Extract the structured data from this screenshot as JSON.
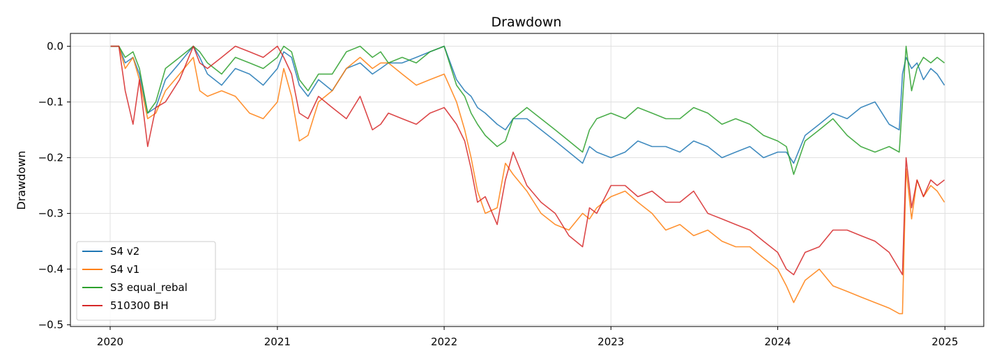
{
  "chart_data": {
    "type": "line",
    "title": "Drawdown",
    "xlabel": "",
    "ylabel": "Drawdown",
    "xlim": [
      "2019-10-06",
      "2025-03-27"
    ],
    "ylim": [
      -0.503,
      0.023
    ],
    "x_ticks": [
      "2020",
      "2021",
      "2022",
      "2023",
      "2024",
      "2025"
    ],
    "y_ticks": [
      0.0,
      -0.1,
      -0.2,
      -0.3,
      -0.4,
      -0.5
    ],
    "y_tick_labels": [
      "0.0",
      "−0.1",
      "−0.2",
      "−0.3",
      "−0.4",
      "−0.5"
    ],
    "grid": true,
    "legend_position": "lower-left",
    "series": [
      {
        "name": "S4 v2",
        "color": "#1f77b4",
        "x": [
          "2020-01-02",
          "2020-01-20",
          "2020-02-03",
          "2020-02-20",
          "2020-03-05",
          "2020-03-23",
          "2020-04-10",
          "2020-05-01",
          "2020-06-01",
          "2020-07-01",
          "2020-07-15",
          "2020-08-01",
          "2020-09-01",
          "2020-10-01",
          "2020-11-01",
          "2020-12-01",
          "2021-01-01",
          "2021-01-15",
          "2021-02-01",
          "2021-02-18",
          "2021-03-09",
          "2021-04-01",
          "2021-05-01",
          "2021-06-01",
          "2021-07-01",
          "2021-07-28",
          "2021-08-15",
          "2021-09-01",
          "2021-10-01",
          "2021-11-01",
          "2021-12-01",
          "2022-01-01",
          "2022-01-28",
          "2022-02-15",
          "2022-03-01",
          "2022-03-15",
          "2022-04-01",
          "2022-04-27",
          "2022-05-15",
          "2022-06-01",
          "2022-07-01",
          "2022-08-01",
          "2022-09-01",
          "2022-10-01",
          "2022-10-31",
          "2022-11-15",
          "2022-12-01",
          "2023-01-01",
          "2023-02-01",
          "2023-03-01",
          "2023-04-01",
          "2023-05-01",
          "2023-06-01",
          "2023-07-01",
          "2023-08-01",
          "2023-09-01",
          "2023-10-01",
          "2023-11-01",
          "2023-12-01",
          "2024-01-01",
          "2024-01-20",
          "2024-02-05",
          "2024-03-01",
          "2024-04-01",
          "2024-05-01",
          "2024-06-01",
          "2024-07-01",
          "2024-08-01",
          "2024-09-01",
          "2024-09-23",
          "2024-09-30",
          "2024-10-08",
          "2024-10-20",
          "2024-11-01",
          "2024-11-15",
          "2024-12-01",
          "2024-12-15",
          "2024-12-31"
        ],
        "y": [
          0.0,
          0.0,
          -0.03,
          -0.02,
          -0.05,
          -0.12,
          -0.11,
          -0.06,
          -0.03,
          0.0,
          -0.02,
          -0.05,
          -0.07,
          -0.04,
          -0.05,
          -0.07,
          -0.04,
          -0.01,
          -0.02,
          -0.07,
          -0.09,
          -0.06,
          -0.08,
          -0.04,
          -0.03,
          -0.05,
          -0.04,
          -0.03,
          -0.03,
          -0.02,
          -0.01,
          0.0,
          -0.06,
          -0.08,
          -0.09,
          -0.11,
          -0.12,
          -0.14,
          -0.15,
          -0.13,
          -0.13,
          -0.15,
          -0.17,
          -0.19,
          -0.21,
          -0.18,
          -0.19,
          -0.2,
          -0.19,
          -0.17,
          -0.18,
          -0.18,
          -0.19,
          -0.17,
          -0.18,
          -0.2,
          -0.19,
          -0.18,
          -0.2,
          -0.19,
          -0.19,
          -0.21,
          -0.16,
          -0.14,
          -0.12,
          -0.13,
          -0.11,
          -0.1,
          -0.14,
          -0.15,
          -0.05,
          -0.02,
          -0.04,
          -0.03,
          -0.06,
          -0.04,
          -0.05,
          -0.07
        ]
      },
      {
        "name": "S4 v1",
        "color": "#ff7f0e",
        "x": [
          "2020-01-02",
          "2020-01-20",
          "2020-02-03",
          "2020-02-20",
          "2020-03-05",
          "2020-03-23",
          "2020-04-10",
          "2020-05-01",
          "2020-06-01",
          "2020-07-01",
          "2020-07-15",
          "2020-08-01",
          "2020-09-01",
          "2020-10-01",
          "2020-11-01",
          "2020-12-01",
          "2021-01-01",
          "2021-01-15",
          "2021-02-01",
          "2021-02-18",
          "2021-03-09",
          "2021-04-01",
          "2021-05-01",
          "2021-06-01",
          "2021-07-01",
          "2021-07-28",
          "2021-08-15",
          "2021-09-01",
          "2021-10-01",
          "2021-11-01",
          "2021-12-01",
          "2022-01-01",
          "2022-01-28",
          "2022-02-15",
          "2022-03-01",
          "2022-03-15",
          "2022-04-01",
          "2022-04-27",
          "2022-05-15",
          "2022-06-01",
          "2022-07-01",
          "2022-08-01",
          "2022-09-01",
          "2022-10-01",
          "2022-10-31",
          "2022-11-15",
          "2022-12-01",
          "2023-01-01",
          "2023-02-01",
          "2023-03-01",
          "2023-04-01",
          "2023-05-01",
          "2023-06-01",
          "2023-07-01",
          "2023-08-01",
          "2023-09-01",
          "2023-10-01",
          "2023-11-01",
          "2023-12-01",
          "2024-01-01",
          "2024-01-20",
          "2024-02-05",
          "2024-03-01",
          "2024-04-01",
          "2024-05-01",
          "2024-06-01",
          "2024-07-01",
          "2024-08-01",
          "2024-09-01",
          "2024-09-23",
          "2024-09-30",
          "2024-10-08",
          "2024-10-20",
          "2024-11-01",
          "2024-11-15",
          "2024-12-01",
          "2024-12-15",
          "2024-12-31"
        ],
        "y": [
          0.0,
          0.0,
          -0.04,
          -0.02,
          -0.06,
          -0.13,
          -0.12,
          -0.08,
          -0.05,
          -0.02,
          -0.08,
          -0.09,
          -0.08,
          -0.09,
          -0.12,
          -0.13,
          -0.1,
          -0.04,
          -0.09,
          -0.17,
          -0.16,
          -0.1,
          -0.08,
          -0.04,
          -0.02,
          -0.04,
          -0.03,
          -0.03,
          -0.05,
          -0.07,
          -0.06,
          -0.05,
          -0.1,
          -0.15,
          -0.2,
          -0.26,
          -0.3,
          -0.29,
          -0.21,
          -0.23,
          -0.26,
          -0.3,
          -0.32,
          -0.33,
          -0.3,
          -0.31,
          -0.29,
          -0.27,
          -0.26,
          -0.28,
          -0.3,
          -0.33,
          -0.32,
          -0.34,
          -0.33,
          -0.35,
          -0.36,
          -0.36,
          -0.38,
          -0.4,
          -0.43,
          -0.46,
          -0.42,
          -0.4,
          -0.43,
          -0.44,
          -0.45,
          -0.46,
          -0.47,
          -0.48,
          -0.48,
          -0.22,
          -0.31,
          -0.24,
          -0.27,
          -0.25,
          -0.26,
          -0.28
        ]
      },
      {
        "name": "S3 equal_rebal",
        "color": "#2ca02c",
        "x": [
          "2020-01-02",
          "2020-01-20",
          "2020-02-03",
          "2020-02-20",
          "2020-03-05",
          "2020-03-23",
          "2020-04-10",
          "2020-05-01",
          "2020-06-01",
          "2020-07-01",
          "2020-07-15",
          "2020-08-01",
          "2020-09-01",
          "2020-10-01",
          "2020-11-01",
          "2020-12-01",
          "2021-01-01",
          "2021-01-15",
          "2021-02-01",
          "2021-02-18",
          "2021-03-09",
          "2021-04-01",
          "2021-05-01",
          "2021-06-01",
          "2021-07-01",
          "2021-07-28",
          "2021-08-15",
          "2021-09-01",
          "2021-10-01",
          "2021-11-01",
          "2021-12-01",
          "2022-01-01",
          "2022-01-28",
          "2022-02-15",
          "2022-03-01",
          "2022-03-15",
          "2022-04-01",
          "2022-04-27",
          "2022-05-15",
          "2022-06-01",
          "2022-07-01",
          "2022-08-01",
          "2022-09-01",
          "2022-10-01",
          "2022-10-31",
          "2022-11-15",
          "2022-12-01",
          "2023-01-01",
          "2023-02-01",
          "2023-03-01",
          "2023-04-01",
          "2023-05-01",
          "2023-06-01",
          "2023-07-01",
          "2023-08-01",
          "2023-09-01",
          "2023-10-01",
          "2023-11-01",
          "2023-12-01",
          "2024-01-01",
          "2024-01-20",
          "2024-02-05",
          "2024-03-01",
          "2024-04-01",
          "2024-05-01",
          "2024-06-01",
          "2024-07-01",
          "2024-08-01",
          "2024-09-01",
          "2024-09-23",
          "2024-09-30",
          "2024-10-08",
          "2024-10-20",
          "2024-11-01",
          "2024-11-15",
          "2024-12-01",
          "2024-12-15",
          "2024-12-31"
        ],
        "y": [
          0.0,
          0.0,
          -0.02,
          -0.01,
          -0.04,
          -0.12,
          -0.1,
          -0.04,
          -0.02,
          0.0,
          -0.01,
          -0.03,
          -0.05,
          -0.02,
          -0.03,
          -0.04,
          -0.02,
          0.0,
          -0.01,
          -0.06,
          -0.08,
          -0.05,
          -0.05,
          -0.01,
          0.0,
          -0.02,
          -0.01,
          -0.03,
          -0.02,
          -0.03,
          -0.01,
          0.0,
          -0.07,
          -0.09,
          -0.12,
          -0.14,
          -0.16,
          -0.18,
          -0.17,
          -0.13,
          -0.11,
          -0.13,
          -0.15,
          -0.17,
          -0.19,
          -0.15,
          -0.13,
          -0.12,
          -0.13,
          -0.11,
          -0.12,
          -0.13,
          -0.13,
          -0.11,
          -0.12,
          -0.14,
          -0.13,
          -0.14,
          -0.16,
          -0.17,
          -0.18,
          -0.23,
          -0.17,
          -0.15,
          -0.13,
          -0.16,
          -0.18,
          -0.19,
          -0.18,
          -0.19,
          -0.1,
          0.0,
          -0.08,
          -0.04,
          -0.02,
          -0.03,
          -0.02,
          -0.03
        ]
      },
      {
        "name": "510300 BH",
        "color": "#d62728",
        "x": [
          "2020-01-02",
          "2020-01-20",
          "2020-02-03",
          "2020-02-20",
          "2020-03-05",
          "2020-03-23",
          "2020-04-10",
          "2020-05-01",
          "2020-06-01",
          "2020-07-01",
          "2020-07-15",
          "2020-08-01",
          "2020-09-01",
          "2020-10-01",
          "2020-11-01",
          "2020-12-01",
          "2021-01-01",
          "2021-01-15",
          "2021-02-01",
          "2021-02-18",
          "2021-03-09",
          "2021-04-01",
          "2021-05-01",
          "2021-06-01",
          "2021-07-01",
          "2021-07-28",
          "2021-08-15",
          "2021-09-01",
          "2021-10-01",
          "2021-11-01",
          "2021-12-01",
          "2022-01-01",
          "2022-01-28",
          "2022-02-15",
          "2022-03-01",
          "2022-03-15",
          "2022-04-01",
          "2022-04-27",
          "2022-05-15",
          "2022-06-01",
          "2022-07-01",
          "2022-08-01",
          "2022-09-01",
          "2022-10-01",
          "2022-10-31",
          "2022-11-15",
          "2022-12-01",
          "2023-01-01",
          "2023-02-01",
          "2023-03-01",
          "2023-04-01",
          "2023-05-01",
          "2023-06-01",
          "2023-07-01",
          "2023-08-01",
          "2023-09-01",
          "2023-10-01",
          "2023-11-01",
          "2023-12-01",
          "2024-01-01",
          "2024-01-20",
          "2024-02-05",
          "2024-03-01",
          "2024-04-01",
          "2024-05-01",
          "2024-06-01",
          "2024-07-01",
          "2024-08-01",
          "2024-09-01",
          "2024-09-23",
          "2024-09-30",
          "2024-10-08",
          "2024-10-20",
          "2024-11-01",
          "2024-11-15",
          "2024-12-01",
          "2024-12-15",
          "2024-12-31"
        ],
        "y": [
          0.0,
          0.0,
          -0.08,
          -0.14,
          -0.06,
          -0.18,
          -0.11,
          -0.1,
          -0.06,
          0.0,
          -0.03,
          -0.04,
          -0.02,
          0.0,
          -0.01,
          -0.02,
          0.0,
          -0.02,
          -0.05,
          -0.12,
          -0.13,
          -0.09,
          -0.11,
          -0.13,
          -0.09,
          -0.15,
          -0.14,
          -0.12,
          -0.13,
          -0.14,
          -0.12,
          -0.11,
          -0.14,
          -0.17,
          -0.22,
          -0.28,
          -0.27,
          -0.32,
          -0.24,
          -0.19,
          -0.25,
          -0.28,
          -0.3,
          -0.34,
          -0.36,
          -0.29,
          -0.3,
          -0.25,
          -0.25,
          -0.27,
          -0.26,
          -0.28,
          -0.28,
          -0.26,
          -0.3,
          -0.31,
          -0.32,
          -0.33,
          -0.35,
          -0.37,
          -0.4,
          -0.41,
          -0.37,
          -0.36,
          -0.33,
          -0.33,
          -0.34,
          -0.35,
          -0.37,
          -0.4,
          -0.41,
          -0.2,
          -0.29,
          -0.24,
          -0.27,
          -0.24,
          -0.25,
          -0.24
        ]
      }
    ]
  }
}
